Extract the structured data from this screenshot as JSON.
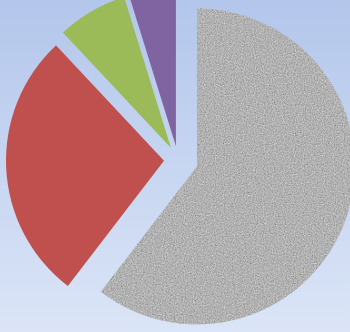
{
  "chart_data": {
    "type": "pie",
    "exploded": true,
    "start_angle_deg": 0,
    "direction": "clockwise",
    "slices": [
      {
        "value": 58.0,
        "color": "#9a9a9a",
        "fill": "noise-texture"
      },
      {
        "value": 26.5,
        "color": "#c0504d",
        "fill": "solid"
      },
      {
        "value": 6.9,
        "color": "#9bbb59",
        "fill": "solid"
      },
      {
        "value": 4.6,
        "color": "#8064a2",
        "fill": "solid"
      }
    ]
  },
  "colors": {
    "background_top": "#b3c6eb",
    "background_bottom": "#dbe5f7"
  }
}
